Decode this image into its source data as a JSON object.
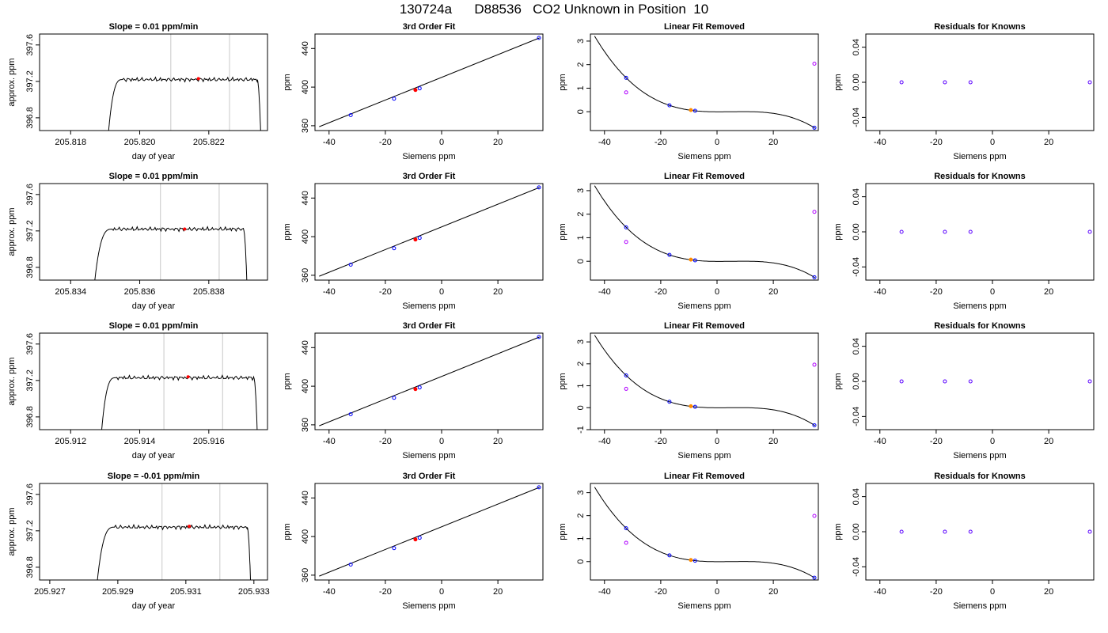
{
  "suptitle": "130724a      D88536   CO2 Unknown in Position  10",
  "chart_data": [
    {
      "title": "Slope =  0.01  ppm/min",
      "type": "line",
      "xlabel": "day of year",
      "ylabel": "approx. ppm",
      "xlim": [
        205.8171,
        205.8237
      ],
      "ylim": [
        396.66,
        397.72
      ],
      "xticks": [
        "205.818",
        "205.820",
        "205.822"
      ],
      "xtickvals": [
        205.818,
        205.82,
        205.822
      ],
      "yticks": [
        "396.8",
        "397.2",
        "397.6"
      ],
      "ytickvals": [
        396.8,
        397.2,
        397.6
      ],
      "vlines": [
        205.8209,
        205.8226
      ],
      "trace": {
        "rise_start": 205.8191,
        "plateau_start": 205.8195,
        "fall_start": 205.8234,
        "fall_end": 205.8235,
        "level": 397.22
      },
      "marker": [
        205.8217,
        397.23
      ]
    },
    {
      "title": "3rd Order Fit",
      "type": "scatter",
      "xlabel": "Siemens ppm",
      "ylabel": "ppm",
      "xlim": [
        -45,
        36
      ],
      "ylim": [
        355,
        455
      ],
      "xticks": [
        "-40",
        "-20",
        "0",
        "20"
      ],
      "xtickvals": [
        -40,
        -20,
        0,
        20
      ],
      "yticks": [
        "360",
        "400",
        "440"
      ],
      "ytickvals": [
        360,
        400,
        440
      ],
      "fit_line": [
        [
          -43.5,
          359
        ],
        [
          34.8,
          451
        ]
      ],
      "points_blue": [
        [
          -32.3,
          371
        ],
        [
          -16.9,
          388
        ],
        [
          -7.8,
          398.7
        ],
        [
          34.6,
          451
        ]
      ],
      "points_red": [
        [
          -9.3,
          397
        ]
      ]
    },
    {
      "title": "Linear Fit Removed",
      "type": "scatter",
      "xlabel": "Siemens ppm",
      "ylabel": "ppm",
      "xlim": [
        -45,
        36
      ],
      "ylim": [
        -0.8,
        3.3
      ],
      "xticks": [
        "-40",
        "-20",
        "0",
        "20"
      ],
      "xtickvals": [
        -40,
        -20,
        0,
        20
      ],
      "yticks": [
        "0",
        "1",
        "2",
        "3"
      ],
      "ytickvals": [
        0,
        1,
        2,
        3
      ],
      "points_blue": [
        [
          -32.3,
          1.44
        ],
        [
          -16.9,
          0.27
        ],
        [
          -7.8,
          0.04
        ],
        [
          34.6,
          -0.68
        ]
      ],
      "points_magenta": [
        [
          -32.3,
          0.82
        ],
        [
          34.6,
          2.04
        ]
      ],
      "points_orange": [
        [
          -9.3,
          0.07
        ]
      ]
    },
    {
      "title": "Residuals for Knowns",
      "type": "scatter",
      "xlabel": "Siemens ppm",
      "ylabel": "ppm",
      "xlim": [
        -45,
        36
      ],
      "ylim": [
        -0.055,
        0.055
      ],
      "xticks": [
        "-40",
        "-20",
        "0",
        "20"
      ],
      "xtickvals": [
        -40,
        -20,
        0,
        20
      ],
      "yticks": [
        "-0.04",
        "0.00",
        "0.04"
      ],
      "ytickvals": [
        -0.04,
        0,
        0.04
      ],
      "points_resid": [
        [
          -32.3,
          0
        ],
        [
          -16.9,
          0
        ],
        [
          -7.8,
          0
        ],
        [
          34.6,
          0
        ]
      ]
    },
    {
      "title": "Slope =  0.01  ppm/min",
      "type": "line",
      "xlabel": "day of year",
      "ylabel": "approx. ppm",
      "xlim": [
        205.8331,
        205.8397
      ],
      "ylim": [
        396.66,
        397.72
      ],
      "xticks": [
        "205.834",
        "205.836",
        "205.838"
      ],
      "xtickvals": [
        205.834,
        205.836,
        205.838
      ],
      "yticks": [
        "396.8",
        "397.2",
        "397.6"
      ],
      "ytickvals": [
        396.8,
        397.2,
        397.6
      ],
      "vlines": [
        205.8366,
        205.8383
      ],
      "trace": {
        "rise_start": 205.8347,
        "plateau_start": 205.8352,
        "fall_start": 205.839,
        "fall_end": 205.8391,
        "level": 397.22
      },
      "marker": [
        205.8373,
        397.22
      ]
    },
    {
      "title": "3rd Order Fit",
      "type": "scatter",
      "xlabel": "Siemens ppm",
      "ylabel": "ppm",
      "xlim": [
        -45,
        36
      ],
      "ylim": [
        355,
        455
      ],
      "xticks": [
        "-40",
        "-20",
        "0",
        "20"
      ],
      "xtickvals": [
        -40,
        -20,
        0,
        20
      ],
      "yticks": [
        "360",
        "400",
        "440"
      ],
      "ytickvals": [
        360,
        400,
        440
      ],
      "fit_line": [
        [
          -43.5,
          359
        ],
        [
          34.8,
          451
        ]
      ],
      "points_blue": [
        [
          -32.3,
          371
        ],
        [
          -16.9,
          388
        ],
        [
          -7.8,
          398.7
        ],
        [
          34.6,
          451
        ]
      ],
      "points_red": [
        [
          -9.3,
          397
        ]
      ]
    },
    {
      "title": "Linear Fit Removed",
      "type": "scatter",
      "xlabel": "Siemens ppm",
      "ylabel": "ppm",
      "xlim": [
        -45,
        36
      ],
      "ylim": [
        -0.8,
        3.3
      ],
      "xticks": [
        "-40",
        "-20",
        "0",
        "20"
      ],
      "xtickvals": [
        -40,
        -20,
        0,
        20
      ],
      "yticks": [
        "0",
        "1",
        "2",
        "3"
      ],
      "ytickvals": [
        0,
        1,
        2,
        3
      ],
      "points_blue": [
        [
          -32.3,
          1.44
        ],
        [
          -16.9,
          0.27
        ],
        [
          -7.8,
          0.04
        ],
        [
          34.6,
          -0.68
        ]
      ],
      "points_magenta": [
        [
          -32.3,
          0.82
        ],
        [
          34.6,
          2.1
        ]
      ],
      "points_orange": [
        [
          -9.3,
          0.07
        ]
      ]
    },
    {
      "title": "Residuals for Knowns",
      "type": "scatter",
      "xlabel": "Siemens ppm",
      "ylabel": "ppm",
      "xlim": [
        -45,
        36
      ],
      "ylim": [
        -0.055,
        0.055
      ],
      "xticks": [
        "-40",
        "-20",
        "0",
        "20"
      ],
      "xtickvals": [
        -40,
        -20,
        0,
        20
      ],
      "yticks": [
        "-0.04",
        "0.00",
        "0.04"
      ],
      "ytickvals": [
        -0.04,
        0,
        0.04
      ],
      "points_resid": [
        [
          -32.3,
          0
        ],
        [
          -16.9,
          0
        ],
        [
          -7.8,
          0
        ],
        [
          34.6,
          0
        ]
      ]
    },
    {
      "title": "Slope =  0.01  ppm/min",
      "type": "line",
      "xlabel": "day of year",
      "ylabel": "approx. ppm",
      "xlim": [
        205.9111,
        205.9177
      ],
      "ylim": [
        396.66,
        397.72
      ],
      "xticks": [
        "205.912",
        "205.914",
        "205.916"
      ],
      "xtickvals": [
        205.912,
        205.914,
        205.916
      ],
      "yticks": [
        "396.8",
        "397.2",
        "397.6"
      ],
      "ytickvals": [
        396.8,
        397.2,
        397.6
      ],
      "vlines": [
        205.9147,
        205.9164
      ],
      "trace": {
        "rise_start": 205.9129,
        "plateau_start": 205.9133,
        "fall_start": 205.9173,
        "fall_end": 205.9174,
        "level": 397.23
      },
      "marker": [
        205.9154,
        397.24
      ]
    },
    {
      "title": "3rd Order Fit",
      "type": "scatter",
      "xlabel": "Siemens ppm",
      "ylabel": "ppm",
      "xlim": [
        -45,
        36
      ],
      "ylim": [
        355,
        455
      ],
      "xticks": [
        "-40",
        "-20",
        "0",
        "20"
      ],
      "xtickvals": [
        -40,
        -20,
        0,
        20
      ],
      "yticks": [
        "360",
        "400",
        "440"
      ],
      "ytickvals": [
        360,
        400,
        440
      ],
      "fit_line": [
        [
          -43.5,
          359
        ],
        [
          34.8,
          451
        ]
      ],
      "points_blue": [
        [
          -32.3,
          371
        ],
        [
          -16.9,
          388
        ],
        [
          -7.8,
          398.7
        ],
        [
          34.6,
          451
        ]
      ],
      "points_red": [
        [
          -9.3,
          397
        ]
      ]
    },
    {
      "title": "Linear Fit Removed",
      "type": "scatter",
      "xlabel": "Siemens ppm",
      "ylabel": "ppm",
      "xlim": [
        -45,
        36
      ],
      "ylim": [
        -1.0,
        3.4
      ],
      "xticks": [
        "-40",
        "-20",
        "0",
        "20"
      ],
      "xtickvals": [
        -40,
        -20,
        0,
        20
      ],
      "yticks": [
        "-1",
        "0",
        "1",
        "2",
        "3"
      ],
      "ytickvals": [
        -1,
        0,
        1,
        2,
        3
      ],
      "points_blue": [
        [
          -32.3,
          1.47
        ],
        [
          -16.9,
          0.27
        ],
        [
          -7.8,
          0.04
        ],
        [
          34.6,
          -0.8
        ]
      ],
      "points_magenta": [
        [
          -32.3,
          0.86
        ],
        [
          34.6,
          1.96
        ]
      ],
      "points_orange": [
        [
          -9.3,
          0.07
        ]
      ]
    },
    {
      "title": "Residuals for Knowns",
      "type": "scatter",
      "xlabel": "Siemens ppm",
      "ylabel": "ppm",
      "xlim": [
        -45,
        36
      ],
      "ylim": [
        -0.055,
        0.055
      ],
      "xticks": [
        "-40",
        "-20",
        "0",
        "20"
      ],
      "xtickvals": [
        -40,
        -20,
        0,
        20
      ],
      "yticks": [
        "-0.04",
        "0.00",
        "0.04"
      ],
      "ytickvals": [
        -0.04,
        0,
        0.04
      ],
      "points_resid": [
        [
          -32.3,
          0
        ],
        [
          -16.9,
          0
        ],
        [
          -7.8,
          0
        ],
        [
          34.6,
          0
        ]
      ]
    },
    {
      "title": "Slope =  -0.01  ppm/min",
      "type": "line",
      "xlabel": "day of year",
      "ylabel": "approx. ppm",
      "xlim": [
        205.9267,
        205.9334
      ],
      "ylim": [
        396.66,
        397.72
      ],
      "xticks": [
        "205.927",
        "205.929",
        "205.931",
        "205.933"
      ],
      "xtickvals": [
        205.927,
        205.929,
        205.931,
        205.933
      ],
      "yticks": [
        "396.8",
        "397.2",
        "397.6"
      ],
      "ytickvals": [
        396.8,
        397.2,
        397.6
      ],
      "vlines": [
        205.9303,
        205.932
      ],
      "trace": {
        "rise_start": 205.9284,
        "plateau_start": 205.9289,
        "fall_start": 205.9328,
        "fall_end": 205.9329,
        "level": 397.24
      },
      "marker": [
        205.9311,
        397.25
      ]
    },
    {
      "title": "3rd Order Fit",
      "type": "scatter",
      "xlabel": "Siemens ppm",
      "ylabel": "ppm",
      "xlim": [
        -45,
        36
      ],
      "ylim": [
        355,
        455
      ],
      "xticks": [
        "-40",
        "-20",
        "0",
        "20"
      ],
      "xtickvals": [
        -40,
        -20,
        0,
        20
      ],
      "yticks": [
        "360",
        "400",
        "440"
      ],
      "ytickvals": [
        360,
        400,
        440
      ],
      "fit_line": [
        [
          -43.5,
          359
        ],
        [
          34.8,
          451
        ]
      ],
      "points_blue": [
        [
          -32.3,
          371
        ],
        [
          -16.9,
          388
        ],
        [
          -7.8,
          398.7
        ],
        [
          34.6,
          451
        ]
      ],
      "points_red": [
        [
          -9.3,
          397
        ]
      ]
    },
    {
      "title": "Linear Fit Removed",
      "type": "scatter",
      "xlabel": "Siemens ppm",
      "ylabel": "ppm",
      "xlim": [
        -45,
        36
      ],
      "ylim": [
        -0.8,
        3.4
      ],
      "xticks": [
        "-40",
        "-20",
        "0",
        "20"
      ],
      "xtickvals": [
        -40,
        -20,
        0,
        20
      ],
      "yticks": [
        "0",
        "1",
        "2",
        "3"
      ],
      "ytickvals": [
        0,
        1,
        2,
        3
      ],
      "points_blue": [
        [
          -32.3,
          1.45
        ],
        [
          -16.9,
          0.27
        ],
        [
          -7.8,
          0.04
        ],
        [
          34.6,
          -0.7
        ]
      ],
      "points_magenta": [
        [
          -32.3,
          0.82
        ],
        [
          34.6,
          1.99
        ]
      ],
      "points_orange": [
        [
          -9.3,
          0.07
        ]
      ]
    },
    {
      "title": "Residuals for Knowns",
      "type": "scatter",
      "xlabel": "Siemens ppm",
      "ylabel": "ppm",
      "xlim": [
        -45,
        36
      ],
      "ylim": [
        -0.055,
        0.055
      ],
      "xticks": [
        "-40",
        "-20",
        "0",
        "20"
      ],
      "xtickvals": [
        -40,
        -20,
        0,
        20
      ],
      "yticks": [
        "-0.04",
        "0.00",
        "0.04"
      ],
      "ytickvals": [
        -0.04,
        0,
        0.04
      ],
      "points_resid": [
        [
          -32.3,
          0
        ],
        [
          -16.9,
          0
        ],
        [
          -7.8,
          0
        ],
        [
          34.6,
          0
        ]
      ]
    }
  ],
  "colors": {
    "blue": "#0000ff",
    "red": "#ff0000",
    "magenta": "#b000ff",
    "orange": "#ff8c00",
    "resid": "#5a00ff",
    "vline": "#c8c8c8"
  }
}
